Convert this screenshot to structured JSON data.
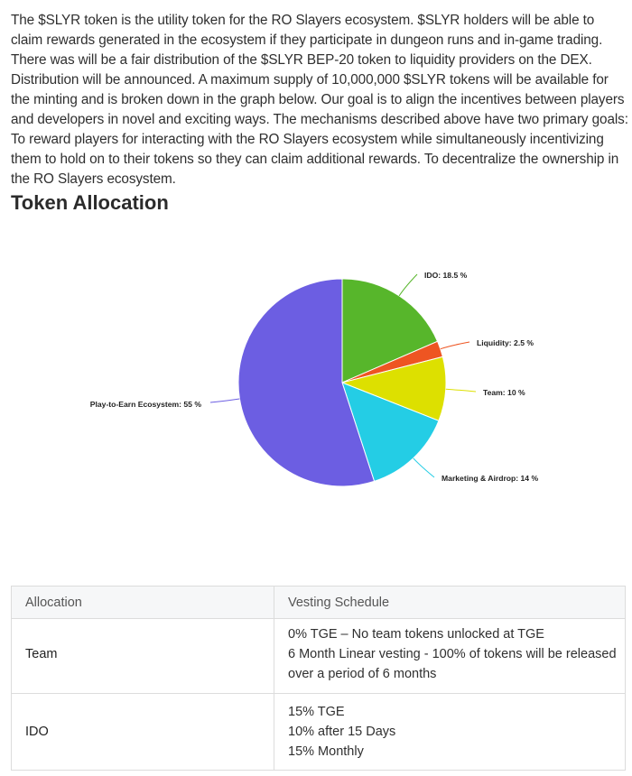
{
  "intro": {
    "paragraph": "The $SLYR token is the utility token for the RO Slayers ecosystem. $SLYR holders will be able to claim rewards generated in the ecosystem if they participate in dungeon runs and in-game trading. There was will be a fair distribution of the $SLYR BEP-20 token to liquidity providers on the DEX. Distribution will be announced. A maximum supply of 10,000,000 $SLYR tokens will be available for the minting and is broken down in the graph below. Our goal is to align the incentives between players and developers in novel and exciting ways. The mechanisms described above have two primary goals: To reward players for interacting with the RO Slayers ecosystem while simultaneously incentivizing them to hold on to their tokens so they can claim additional rewards. To decentralize the ownership in the RO Slayers ecosystem."
  },
  "section": {
    "title": "Token Allocation"
  },
  "chart_data": {
    "type": "pie",
    "title": "",
    "start_angle_deg": 0,
    "direction": "clockwise",
    "slices": [
      {
        "label": "IDO: 18.5 %",
        "name": "IDO",
        "value": 18.5,
        "color": "#57b62b"
      },
      {
        "label": "Liquidity: 2.5 %",
        "name": "Liquidity",
        "value": 2.5,
        "color": "#ee5522"
      },
      {
        "label": "Team: 10 %",
        "name": "Team",
        "value": 10,
        "color": "#dde000"
      },
      {
        "label": "Marketing & Airdrop: 14 %",
        "name": "Marketing & Airdrop",
        "value": 14,
        "color": "#24cde5"
      },
      {
        "label": "Play-to-Earn Ecosystem: 55 %",
        "name": "Play-to-Earn Ecosystem",
        "value": 55,
        "color": "#6c5ee2"
      }
    ]
  },
  "table": {
    "headers": [
      "Allocation",
      "Vesting Schedule"
    ],
    "rows": [
      {
        "allocation": "Team",
        "schedule": [
          "0% TGE – No team tokens unlocked at TGE",
          "6 Month Linear vesting - 100% of tokens will be released over a period of 6 months"
        ]
      },
      {
        "allocation": "IDO",
        "schedule": [
          "15% TGE",
          "10% after 15 Days",
          "15% Monthly"
        ]
      }
    ]
  }
}
